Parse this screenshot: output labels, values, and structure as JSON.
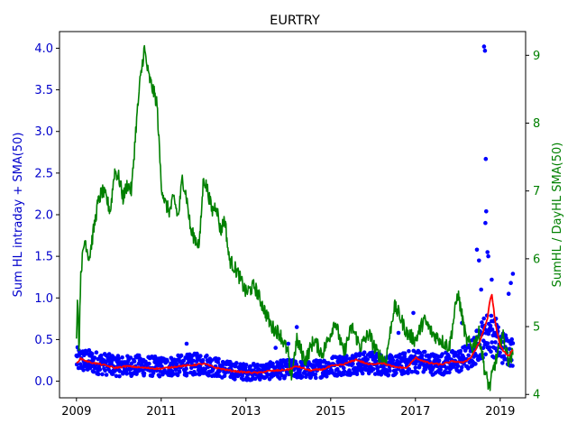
{
  "chart_data": {
    "type": "line",
    "title": "EURTRY",
    "xlabel": "",
    "ylabel_left": "Sum HL intraday + SMA(50)",
    "ylabel_right": "SumHL / DayHL SMA(50)",
    "xlim": [
      2008.6,
      2019.6
    ],
    "ylim_left": [
      -0.2,
      4.2
    ],
    "ylim_right": [
      3.95,
      9.35
    ],
    "x_ticks": [
      2009,
      2011,
      2013,
      2015,
      2017,
      2019
    ],
    "x_tick_labels": [
      "2009",
      "2011",
      "2013",
      "2015",
      "2017",
      "2019"
    ],
    "y_left_ticks": [
      0.0,
      0.5,
      1.0,
      1.5,
      2.0,
      2.5,
      3.0,
      3.5,
      4.0
    ],
    "y_left_tick_labels": [
      "0.0",
      "0.5",
      "1.0",
      "1.5",
      "2.0",
      "2.5",
      "3.0",
      "3.5",
      "4.0"
    ],
    "y_right_ticks": [
      4,
      5,
      6,
      7,
      8,
      9
    ],
    "y_right_tick_labels": [
      "4",
      "5",
      "6",
      "7",
      "8",
      "9"
    ],
    "grid": false,
    "colors": {
      "scatter": "#0000ff",
      "sma": "#ff0000",
      "ratio": "#008000",
      "left_axis": "#0000cc",
      "right_axis": "#008000"
    },
    "series": [
      {
        "kind": "scatter",
        "axis": "left",
        "baseline": [
          [
            2009.0,
            0.26
          ],
          [
            2009.5,
            0.22
          ],
          [
            2010.0,
            0.18
          ],
          [
            2010.5,
            0.19
          ],
          [
            2011.0,
            0.17
          ],
          [
            2011.5,
            0.19
          ],
          [
            2012.0,
            0.21
          ],
          [
            2012.5,
            0.14
          ],
          [
            2013.0,
            0.11
          ],
          [
            2013.5,
            0.12
          ],
          [
            2014.0,
            0.15
          ],
          [
            2014.5,
            0.13
          ],
          [
            2015.0,
            0.18
          ],
          [
            2015.5,
            0.21
          ],
          [
            2016.0,
            0.22
          ],
          [
            2016.5,
            0.18
          ],
          [
            2017.0,
            0.25
          ],
          [
            2017.5,
            0.2
          ],
          [
            2018.0,
            0.24
          ],
          [
            2018.3,
            0.3
          ],
          [
            2018.55,
            0.5
          ],
          [
            2018.75,
            0.6
          ],
          [
            2019.0,
            0.42
          ],
          [
            2019.3,
            0.35
          ]
        ],
        "outliers": [
          [
            2018.62,
            4.02
          ],
          [
            2018.64,
            3.97
          ],
          [
            2018.66,
            2.67
          ],
          [
            2018.67,
            2.04
          ],
          [
            2018.65,
            1.9
          ],
          [
            2018.45,
            1.58
          ],
          [
            2018.5,
            1.45
          ],
          [
            2018.7,
            1.55
          ],
          [
            2018.72,
            1.5
          ],
          [
            2019.3,
            1.29
          ],
          [
            2019.25,
            1.18
          ],
          [
            2018.8,
            1.22
          ],
          [
            2018.55,
            1.1
          ],
          [
            2019.2,
            1.05
          ],
          [
            2011.6,
            0.45
          ],
          [
            2014.2,
            0.65
          ],
          [
            2016.6,
            0.58
          ],
          [
            2016.95,
            0.82
          ],
          [
            2018.1,
            0.7
          ],
          [
            2018.9,
            0.75
          ],
          [
            2014.0,
            0.45
          ],
          [
            2015.8,
            0.5
          ],
          [
            2013.7,
            0.4
          ]
        ]
      },
      {
        "name": "SMA(50)",
        "kind": "line",
        "axis": "left",
        "x": [
          2009.0,
          2009.1,
          2009.3,
          2009.6,
          2009.9,
          2010.2,
          2010.6,
          2011.0,
          2011.4,
          2011.7,
          2012.0,
          2012.3,
          2012.6,
          2012.9,
          2013.3,
          2013.5,
          2013.8,
          2014.0,
          2014.2,
          2014.5,
          2014.8,
          2015.0,
          2015.3,
          2015.6,
          2015.9,
          2016.2,
          2016.5,
          2016.8,
          2017.0,
          2017.3,
          2017.6,
          2017.9,
          2018.1,
          2018.3,
          2018.5,
          2018.6,
          2018.7,
          2018.75,
          2018.8,
          2018.9,
          2019.0,
          2019.1,
          2019.2,
          2019.3
        ],
        "y": [
          0.22,
          0.27,
          0.23,
          0.2,
          0.16,
          0.18,
          0.16,
          0.15,
          0.18,
          0.19,
          0.21,
          0.16,
          0.13,
          0.11,
          0.1,
          0.12,
          0.13,
          0.14,
          0.18,
          0.13,
          0.14,
          0.18,
          0.2,
          0.26,
          0.2,
          0.22,
          0.17,
          0.16,
          0.28,
          0.22,
          0.2,
          0.24,
          0.22,
          0.28,
          0.45,
          0.6,
          0.75,
          0.95,
          1.05,
          0.65,
          0.42,
          0.35,
          0.3,
          0.38
        ]
      },
      {
        "name": "SumHL / DayHL SMA(50)",
        "kind": "line",
        "axis": "right",
        "x": [
          2009.0,
          2009.03,
          2009.06,
          2009.1,
          2009.2,
          2009.3,
          2009.4,
          2009.5,
          2009.6,
          2009.7,
          2009.8,
          2009.9,
          2010.0,
          2010.1,
          2010.2,
          2010.3,
          2010.4,
          2010.5,
          2010.6,
          2010.7,
          2010.8,
          2010.9,
          2011.0,
          2011.1,
          2011.2,
          2011.3,
          2011.4,
          2011.5,
          2011.6,
          2011.7,
          2011.8,
          2011.9,
          2012.0,
          2012.1,
          2012.2,
          2012.3,
          2012.4,
          2012.5,
          2012.6,
          2012.8,
          2013.0,
          2013.2,
          2013.4,
          2013.6,
          2013.8,
          2014.0,
          2014.05,
          2014.2,
          2014.4,
          2014.6,
          2014.8,
          2015.0,
          2015.1,
          2015.3,
          2015.5,
          2015.7,
          2015.9,
          2016.1,
          2016.3,
          2016.5,
          2016.6,
          2016.8,
          2017.0,
          2017.2,
          2017.4,
          2017.6,
          2017.8,
          2018.0,
          2018.2,
          2018.35,
          2018.5,
          2018.65,
          2018.75,
          2018.85,
          2018.95,
          2019.05,
          2019.2,
          2019.3
        ],
        "y": [
          4.9,
          5.5,
          4.6,
          5.8,
          6.3,
          6.0,
          6.4,
          6.8,
          7.0,
          6.9,
          6.7,
          7.3,
          7.2,
          6.9,
          7.1,
          7.0,
          7.9,
          8.6,
          9.1,
          8.7,
          8.5,
          8.3,
          7.1,
          6.8,
          6.7,
          6.9,
          6.6,
          7.2,
          6.9,
          6.4,
          6.3,
          6.2,
          7.2,
          7.0,
          6.7,
          6.8,
          6.4,
          6.6,
          6.0,
          5.8,
          5.5,
          5.6,
          5.3,
          5.0,
          4.9,
          4.6,
          4.2,
          4.8,
          4.5,
          4.8,
          4.6,
          4.9,
          5.1,
          4.6,
          5.0,
          4.7,
          4.9,
          4.6,
          4.5,
          5.3,
          5.2,
          4.9,
          4.8,
          5.1,
          4.9,
          4.8,
          4.7,
          5.5,
          4.8,
          4.7,
          4.9,
          4.3,
          4.1,
          4.4,
          4.6,
          4.9,
          4.5,
          4.6
        ]
      }
    ]
  }
}
